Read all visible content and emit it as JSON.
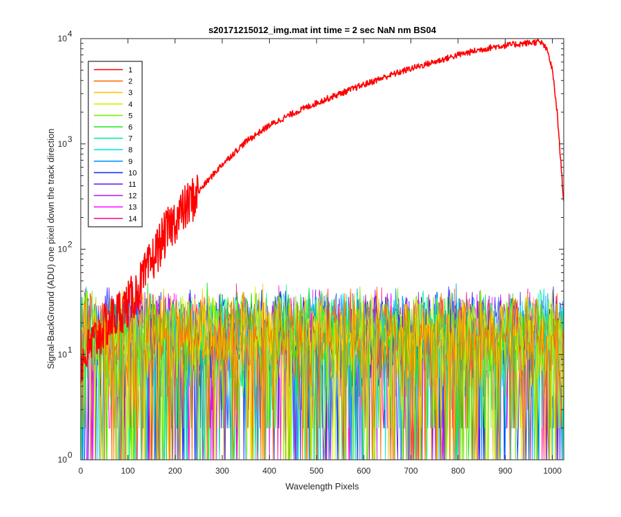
{
  "chart_data": {
    "type": "line",
    "title": "s20171215012_img.mat int time = 2 sec  NaN nm BS04",
    "xlabel": "Wavelength Pixels",
    "ylabel": "Signal-BackGround (ADU) one pixel down the track direction",
    "xlim": [
      0,
      1024
    ],
    "ylim": [
      1,
      10000
    ],
    "yscale": "log",
    "xticks": [
      "0",
      "100",
      "200",
      "300",
      "400",
      "500",
      "600",
      "700",
      "800",
      "900",
      "1000"
    ],
    "yticks": [
      {
        "base": "10",
        "exp": "0"
      },
      {
        "base": "10",
        "exp": "1"
      },
      {
        "base": "10",
        "exp": "2"
      },
      {
        "base": "10",
        "exp": "3"
      },
      {
        "base": "10",
        "exp": "4"
      }
    ],
    "grid": false,
    "legend_position": "top-left",
    "series": [
      {
        "name": "1",
        "color": "#ff0000",
        "profile": {
          "x": [
            0,
            20,
            50,
            80,
            100,
            120,
            140,
            160,
            180,
            200,
            230,
            260,
            300,
            350,
            400,
            450,
            500,
            550,
            600,
            650,
            700,
            750,
            800,
            850,
            880,
            900,
            920,
            940,
            960,
            970,
            980,
            990,
            1000,
            1010,
            1020,
            1024
          ],
          "y": [
            8,
            12,
            18,
            25,
            30,
            40,
            60,
            95,
            140,
            190,
            270,
            400,
            640,
            1050,
            1500,
            1950,
            2450,
            3000,
            3650,
            4400,
            5200,
            6000,
            7000,
            7900,
            8400,
            8600,
            8800,
            9000,
            9200,
            9300,
            8900,
            7500,
            5000,
            2000,
            500,
            280
          ]
        }
      },
      {
        "name": "2",
        "color": "#ff6a00"
      },
      {
        "name": "3",
        "color": "#ffc800"
      },
      {
        "name": "4",
        "color": "#d4f000"
      },
      {
        "name": "5",
        "color": "#7cf000"
      },
      {
        "name": "6",
        "color": "#1ee61e"
      },
      {
        "name": "7",
        "color": "#00f09a"
      },
      {
        "name": "8",
        "color": "#00ece6"
      },
      {
        "name": "9",
        "color": "#0096ff"
      },
      {
        "name": "10",
        "color": "#1432ff"
      },
      {
        "name": "11",
        "color": "#5a14ff"
      },
      {
        "name": "12",
        "color": "#b41eff"
      },
      {
        "name": "13",
        "color": "#ff14ff"
      },
      {
        "name": "14",
        "color": "#ff1490"
      }
    ],
    "noise_series_value_range": [
      1,
      50
    ]
  }
}
